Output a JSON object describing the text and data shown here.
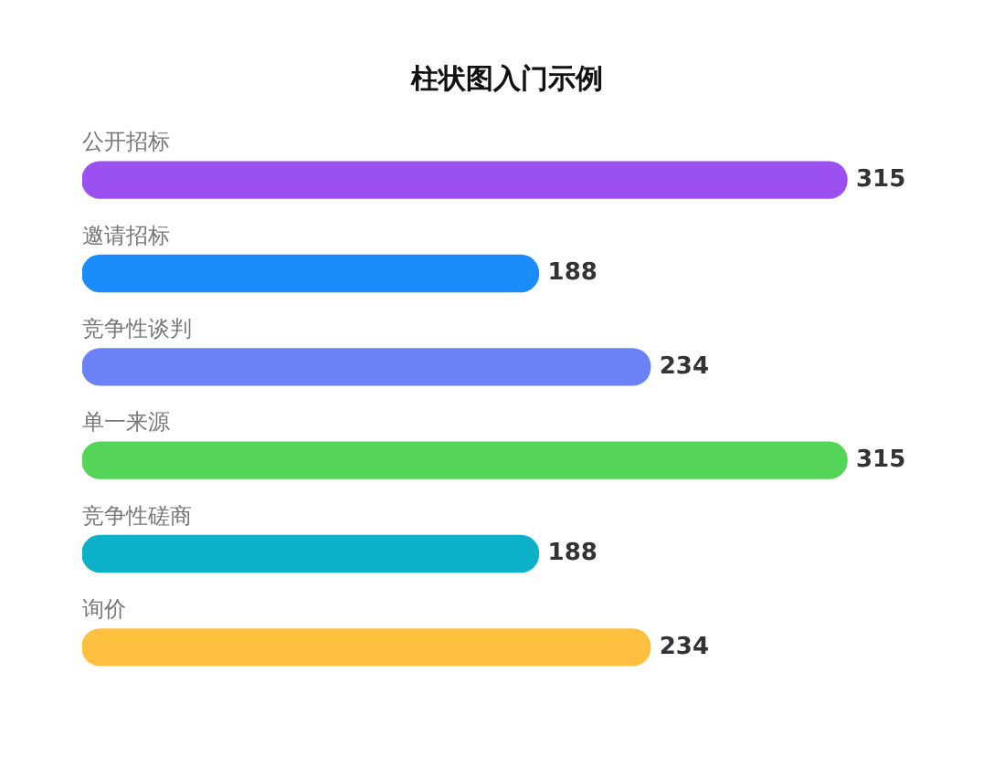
{
  "chart_data": {
    "type": "bar",
    "title": "柱状图入门示例",
    "orientation": "horizontal",
    "tick_labels": false,
    "categories": [
      "公开招标",
      "邀请招标",
      "竞争性谈判",
      "单一来源",
      "竞争性磋商",
      "询价"
    ],
    "values": [
      315,
      188,
      234,
      315,
      188,
      234
    ],
    "colors": [
      "#9b50f0",
      "#1a8cfc",
      "#6a82f5",
      "#55d45a",
      "#0cb0c8",
      "#ffc040"
    ],
    "data_labels": true
  }
}
